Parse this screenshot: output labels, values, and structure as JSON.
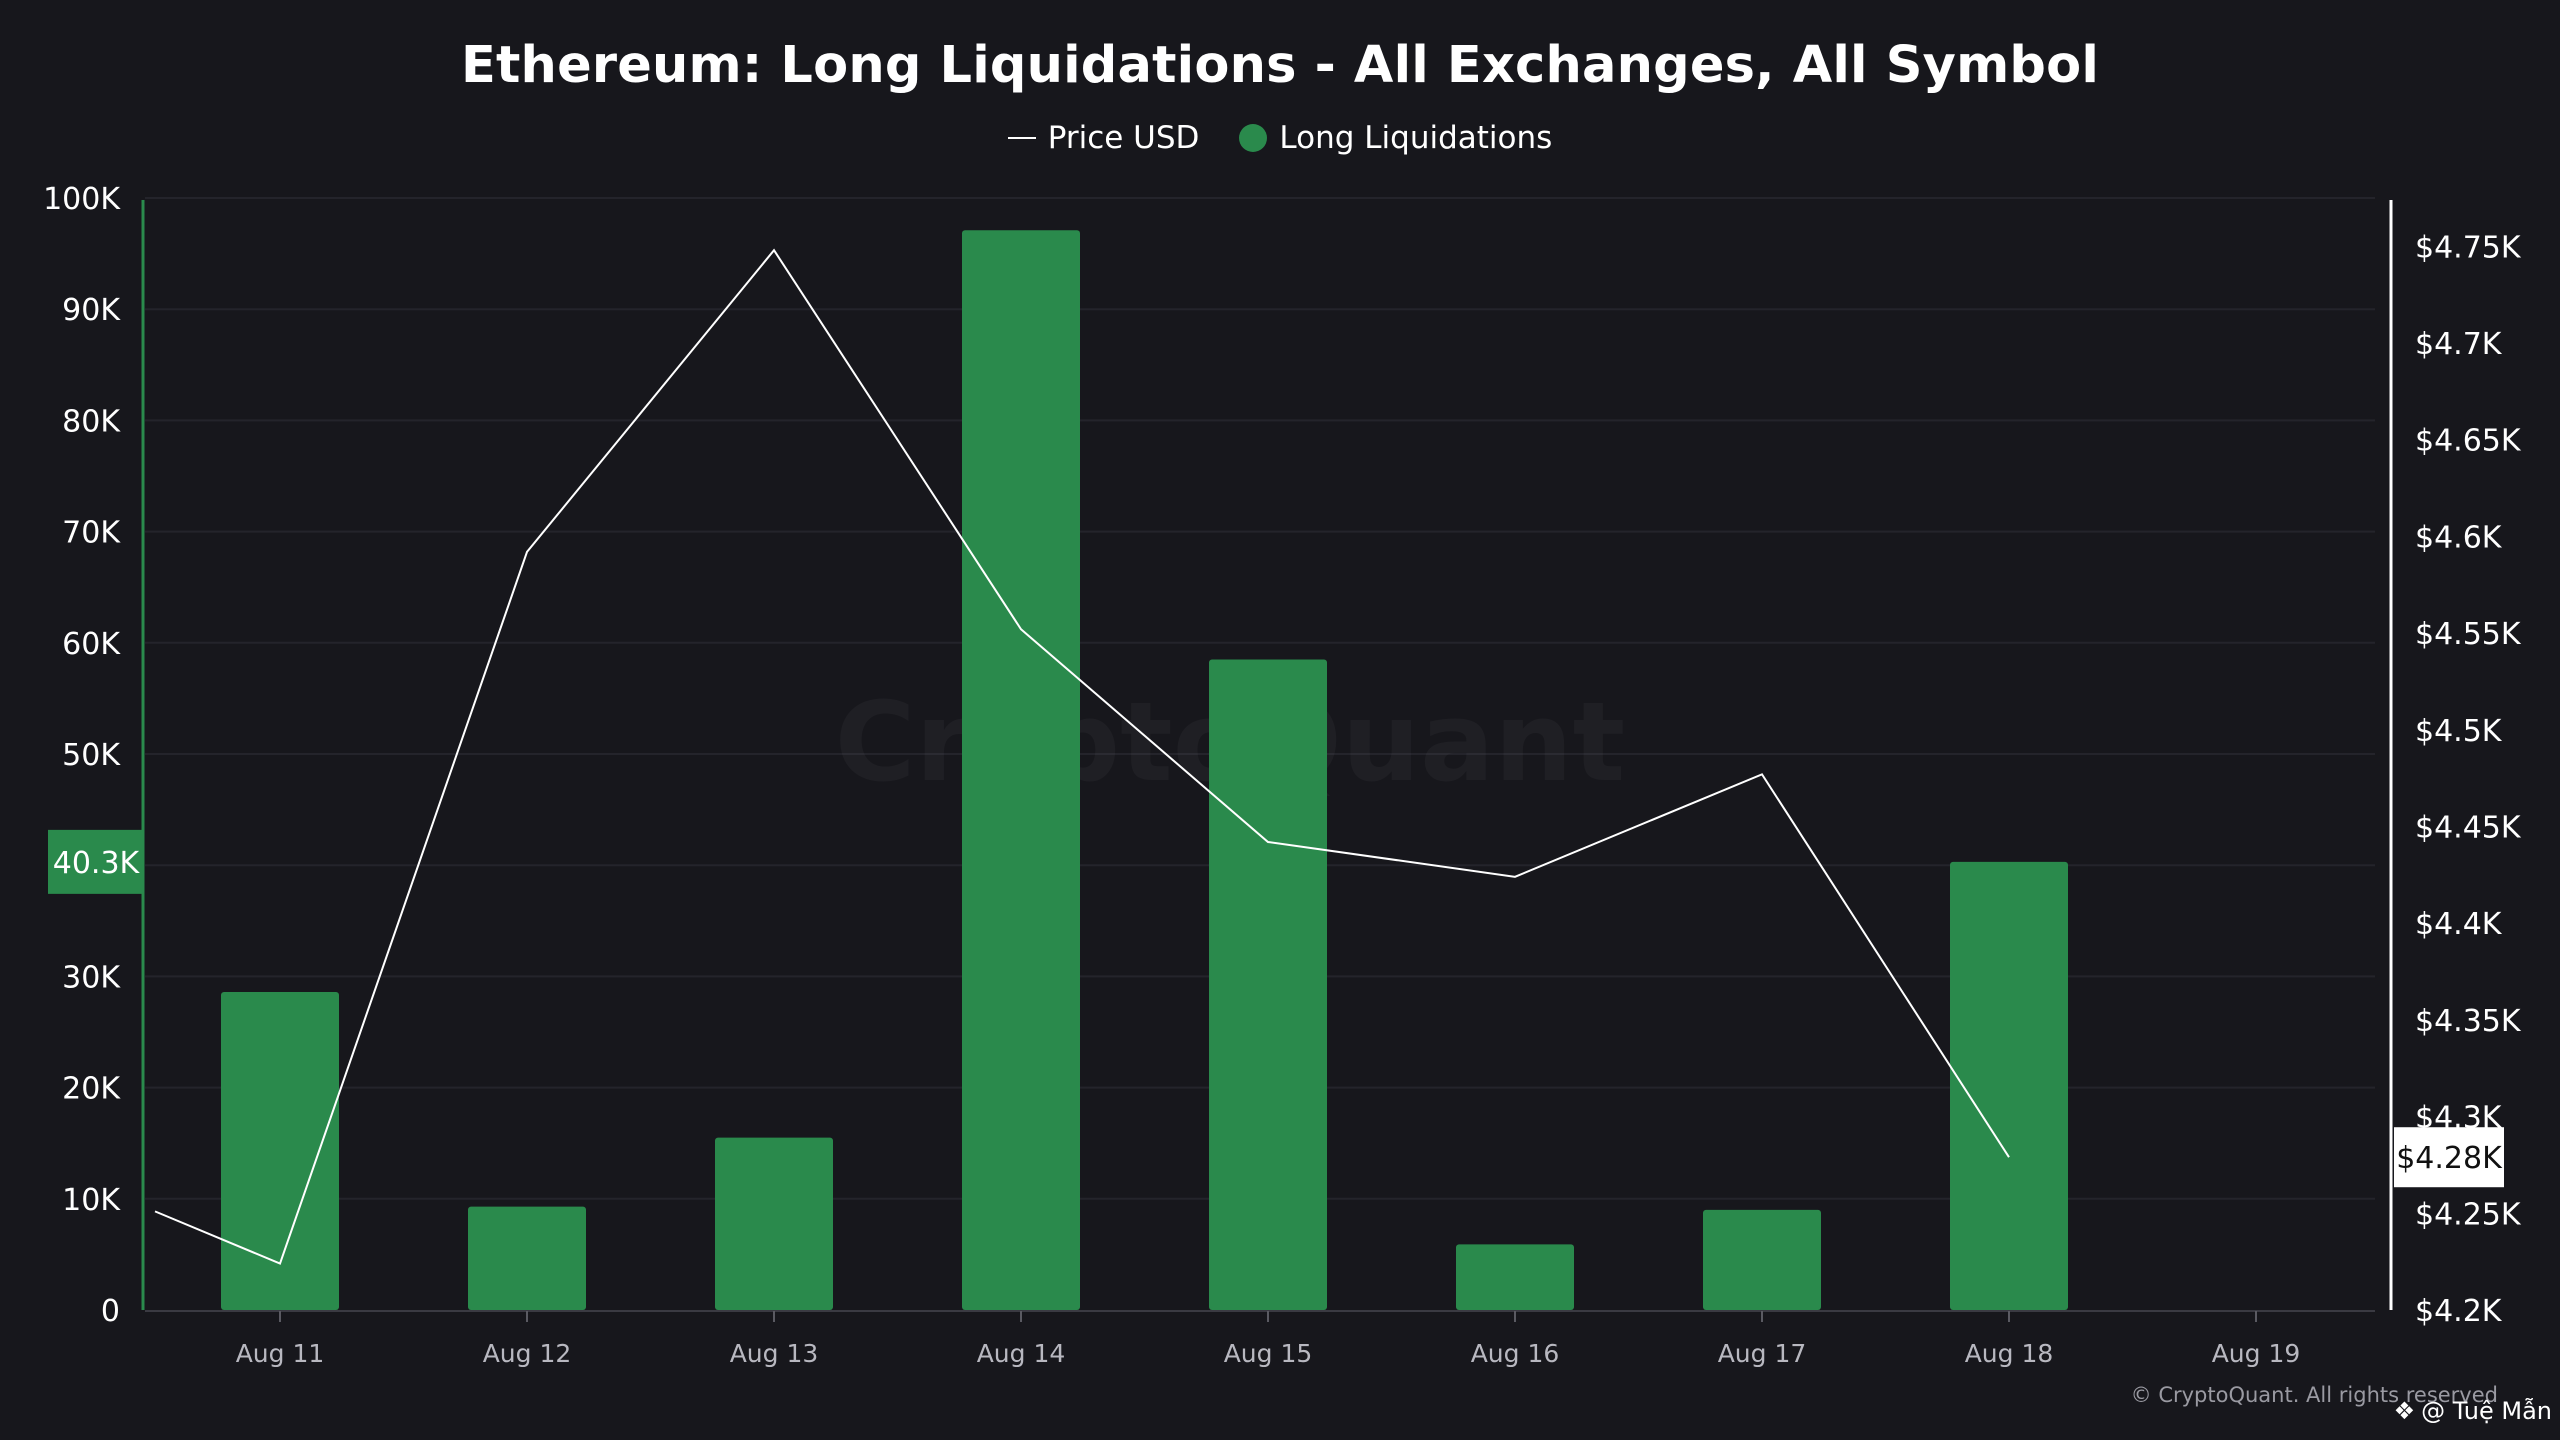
{
  "title": "Ethereum: Long Liquidations - All Exchanges, All Symbol",
  "legend": {
    "price_label": "Price USD",
    "liq_label": "Long Liquidations"
  },
  "colors": {
    "background": "#17171c",
    "bar": "#2a8a4c",
    "price_line": "#ffffff",
    "grid": "#24242b",
    "axis_text": "#ffffff",
    "x_tick_text": "#b8b8c0"
  },
  "watermark": "CryptoQuant",
  "copyright": "© CryptoQuant. All rights reserved",
  "credit": "@ Tuệ Mẫn",
  "credit_icon": "binance-diamond-icon",
  "chart_data": {
    "type": "bar",
    "title": "Ethereum: Long Liquidations - All Exchanges, All Symbol",
    "categories": [
      "Aug 11",
      "Aug 12",
      "Aug 13",
      "Aug 14",
      "Aug 15",
      "Aug 16",
      "Aug 17",
      "Aug 18",
      "Aug 19"
    ],
    "series": [
      {
        "name": "Long Liquidations",
        "type": "bar",
        "axis": "left",
        "values": [
          28600,
          9300,
          15500,
          97100,
          58500,
          5900,
          9000,
          40300,
          null
        ]
      },
      {
        "name": "Price USD",
        "type": "line",
        "axis": "right",
        "values": [
          4224,
          4592,
          4748,
          4552,
          4442,
          4424,
          4477,
          4279,
          null
        ]
      }
    ],
    "left_axis": {
      "ylim": [
        0,
        100000
      ],
      "ticks": [
        0,
        10000,
        20000,
        30000,
        40000,
        50000,
        60000,
        70000,
        80000,
        90000,
        100000
      ],
      "tick_labels": [
        "0",
        "10K",
        "20K",
        "30K",
        "40K",
        "50K",
        "60K",
        "70K",
        "80K",
        "90K",
        "100K"
      ],
      "highlight_label": "40.3K",
      "highlight_value": 40300
    },
    "right_axis": {
      "ylim": [
        4200,
        4775
      ],
      "ticks": [
        4200,
        4250,
        4300,
        4350,
        4400,
        4450,
        4500,
        4550,
        4600,
        4650,
        4700,
        4750
      ],
      "tick_labels": [
        "$4.2K",
        "$4.25K",
        "$4.3K",
        "$4.35K",
        "$4.4K",
        "$4.45K",
        "$4.5K",
        "$4.55K",
        "$4.6K",
        "$4.65K",
        "$4.7K",
        "$4.75K"
      ],
      "highlight_label": "$4.28K",
      "highlight_value": 4279
    },
    "grid": true,
    "legend_position": "top-center"
  }
}
